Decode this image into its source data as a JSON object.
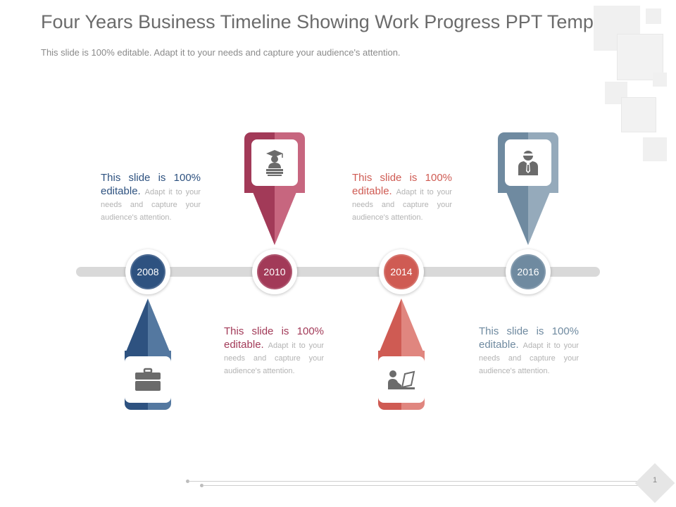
{
  "slide": {
    "title": "Four Years Business Timeline Showing Work Progress PPT Template",
    "subtitle": "This slide is 100% editable. Adapt it to your needs and capture your audience's attention.",
    "page_number": "1"
  },
  "timeline": {
    "milestones": [
      {
        "year": "2008",
        "color": "#2e5280",
        "icon": "briefcase-icon",
        "lead": "This slide is 100% editable.",
        "text": "Adapt it to your needs and capture your audience's attention."
      },
      {
        "year": "2010",
        "color": "#a23a58",
        "icon": "graduate-icon",
        "lead": "This slide is 100% editable.",
        "text": "Adapt it to your needs and capture your audience's attention."
      },
      {
        "year": "2014",
        "color": "#cf5b53",
        "icon": "laptop-user-icon",
        "lead": "This slide is 100% editable.",
        "text": "Adapt it to your needs and capture your audience's attention."
      },
      {
        "year": "2016",
        "color": "#6f8aa0",
        "icon": "businessman-icon",
        "lead": "This slide is 100% editable.",
        "text": "Adapt it to your needs and capture your audience's attention."
      }
    ]
  }
}
